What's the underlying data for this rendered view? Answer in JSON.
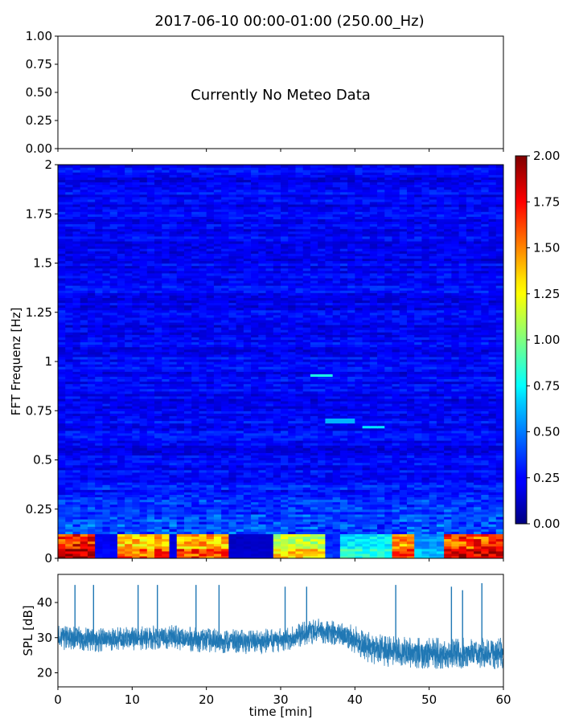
{
  "figure": {
    "title": "2017-06-10 00:00-01:00 (250.00_Hz)"
  },
  "chart_data": [
    {
      "type": "line",
      "panel": "meteo",
      "annotation": "Currently No Meteo Data",
      "ylim": [
        0,
        1
      ],
      "yticks": [
        "0.00",
        "0.25",
        "0.50",
        "0.75",
        "1.00"
      ],
      "xlim": [
        0,
        60
      ],
      "grid": false,
      "series": []
    },
    {
      "type": "heatmap",
      "panel": "spectrogram",
      "ylabel": "FFT Frequenz [Hz]",
      "ylim": [
        0,
        2
      ],
      "yticks": [
        "0",
        "0.25",
        "0.5",
        "0.75",
        "1",
        "1.25",
        "1.5",
        "1.75",
        "2"
      ],
      "xlim": [
        0,
        60
      ],
      "colormap": "jet",
      "colorbar": {
        "range": [
          0,
          2
        ],
        "ticks": [
          "0.00",
          "0.25",
          "0.50",
          "0.75",
          "1.00",
          "1.25",
          "1.50",
          "1.75",
          "2.00"
        ],
        "placement": "right"
      },
      "background_level": 0.18,
      "low_freq_segments": [
        {
          "x": [
            0,
            5.3
          ],
          "level": 1.9
        },
        {
          "x": [
            5.3,
            8.4
          ],
          "level": 0.25
        },
        {
          "x": [
            8.4,
            14.6
          ],
          "level": 1.5
        },
        {
          "x": [
            14.6,
            16.5
          ],
          "level": 0.2
        },
        {
          "x": [
            16.5,
            22.8
          ],
          "level": 1.55
        },
        {
          "x": [
            22.8,
            29.3
          ],
          "level": 0.15
        },
        {
          "x": [
            29.3,
            35.6
          ],
          "level": 1.25
        },
        {
          "x": [
            35.6,
            38.2
          ],
          "level": 0.35
        },
        {
          "x": [
            38.2,
            45.5
          ],
          "level": 0.8
        },
        {
          "x": [
            45.5,
            48.5
          ],
          "level": 1.6
        },
        {
          "x": [
            48.5,
            52.0
          ],
          "level": 0.6
        },
        {
          "x": [
            52.0,
            60
          ],
          "level": 1.8
        }
      ],
      "streaks": [
        {
          "x": [
            34,
            37
          ],
          "y": 0.93,
          "level": 0.8
        },
        {
          "x": [
            36,
            40
          ],
          "y": 0.7,
          "level": 0.6
        },
        {
          "x": [
            41,
            44
          ],
          "y": 0.67,
          "level": 0.7
        }
      ],
      "grid": false
    },
    {
      "type": "line",
      "panel": "spl",
      "xlabel": "time [min]",
      "ylabel": "SPL [dB]",
      "xlim": [
        0,
        60
      ],
      "ylim": [
        16,
        48
      ],
      "xticks": [
        "0",
        "10",
        "20",
        "30",
        "40",
        "50",
        "60"
      ],
      "yticks": [
        "20",
        "30",
        "40"
      ],
      "color": "#1f77b4",
      "grid": false,
      "series": [
        {
          "x": [
            0,
            5,
            10,
            15,
            20,
            25,
            30,
            33,
            35,
            38,
            40,
            42,
            45,
            50,
            55,
            60
          ],
          "mean": [
            30,
            29.5,
            29.8,
            30.2,
            29.2,
            28.8,
            29.3,
            31,
            32,
            31,
            29.5,
            27,
            26,
            25.5,
            25.5,
            25.5
          ],
          "spread": [
            3.5,
            3.5,
            3.5,
            3.5,
            3.5,
            3.5,
            3.5,
            3.5,
            3.5,
            3.5,
            4,
            4.5,
            4.5,
            4.5,
            4.5,
            4.5
          ]
        }
      ],
      "spikes": [
        {
          "x": 2.3,
          "y": 45
        },
        {
          "x": 4.8,
          "y": 45
        },
        {
          "x": 10.8,
          "y": 45
        },
        {
          "x": 13.4,
          "y": 45
        },
        {
          "x": 18.6,
          "y": 45
        },
        {
          "x": 21.7,
          "y": 45
        },
        {
          "x": 30.6,
          "y": 44.5
        },
        {
          "x": 33.5,
          "y": 44.5
        },
        {
          "x": 45.5,
          "y": 45
        },
        {
          "x": 53.0,
          "y": 44.5
        },
        {
          "x": 54.5,
          "y": 43.5
        },
        {
          "x": 57.1,
          "y": 45.5
        }
      ]
    }
  ]
}
